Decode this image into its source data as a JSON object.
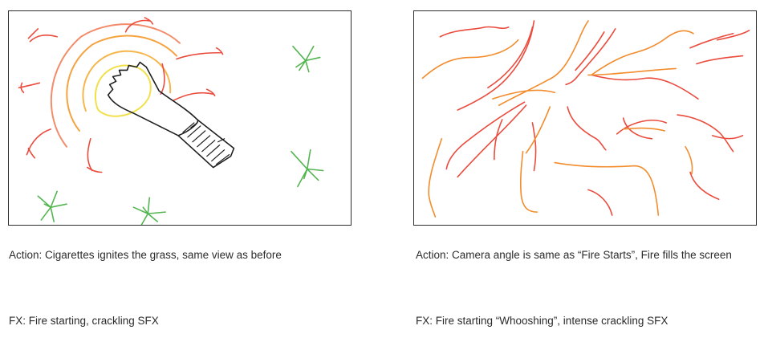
{
  "panels": [
    {
      "action": "Action: Cigarettes ignites the grass, same view as before",
      "fx": "FX: Fire starting, crackling SFX"
    },
    {
      "action": "Action: Camera angle is same as “Fire Starts”, Fire fills the screen",
      "fx": "FX: Fire starting “Whooshing”, intense crackling SFX"
    }
  ],
  "colors": {
    "frame_border": "#2d2d2d",
    "fire_red": "#ea4b3c",
    "fire_orange": "#f28c2c",
    "glow_yellow": "#f2e04a",
    "grass_green": "#53b54f",
    "cigarette_ink": "#1e1e1e"
  }
}
